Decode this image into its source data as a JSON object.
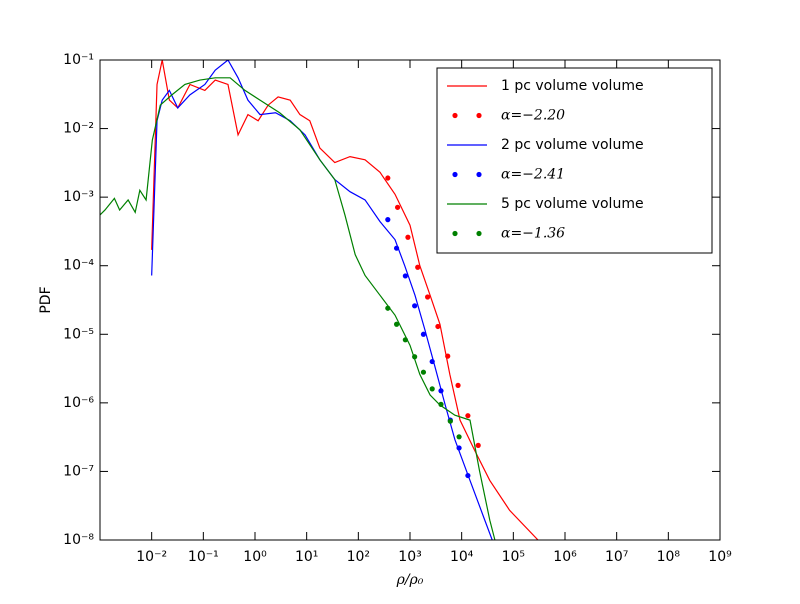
{
  "chart_data": {
    "type": "line",
    "x_label": "ρ/ρ₀",
    "y_label": "PDF",
    "x_scale": "log",
    "y_scale": "log",
    "xlim": [
      0.001,
      1000000000
    ],
    "ylim": [
      1e-08,
      0.1
    ],
    "xticks": [
      {
        "value": 0.01,
        "label": "10⁻²"
      },
      {
        "value": 0.1,
        "label": "10⁻¹"
      },
      {
        "value": 1,
        "label": "10⁰"
      },
      {
        "value": 10,
        "label": "10¹"
      },
      {
        "value": 100,
        "label": "10²"
      },
      {
        "value": 1000,
        "label": "10³"
      },
      {
        "value": 10000,
        "label": "10⁴"
      },
      {
        "value": 100000,
        "label": "10⁵"
      },
      {
        "value": 1000000,
        "label": "10⁶"
      },
      {
        "value": 10000000,
        "label": "10⁷"
      },
      {
        "value": 100000000,
        "label": "10⁸"
      },
      {
        "value": 1000000000,
        "label": "10⁹"
      }
    ],
    "yticks": [
      {
        "value": 1e-08,
        "label": "10⁻⁸"
      },
      {
        "value": 1e-07,
        "label": "10⁻⁷"
      },
      {
        "value": 1e-06,
        "label": "10⁻⁶"
      },
      {
        "value": 1e-05,
        "label": "10⁻⁵"
      },
      {
        "value": 0.0001,
        "label": "10⁻⁴"
      },
      {
        "value": 0.001,
        "label": "10⁻³"
      },
      {
        "value": 0.01,
        "label": "10⁻²"
      },
      {
        "value": 0.1,
        "label": "10⁻¹"
      }
    ],
    "legend": "upper right",
    "series": [
      {
        "name": "1 pc volume volume",
        "color": "#ff0000",
        "style": "line",
        "x": [
          0.01,
          0.0127,
          0.016,
          0.022,
          0.032,
          0.055,
          0.107,
          0.17,
          0.3,
          0.47,
          0.73,
          1.15,
          1.8,
          2.8,
          4.8,
          7.4,
          11.5,
          18,
          35,
          69,
          135,
          263,
          513,
          1000,
          1550,
          2450,
          3800,
          5900,
          9300,
          18000,
          35000,
          85000,
          300000
        ],
        "values": [
          0.00017,
          0.044,
          0.1,
          0.026,
          0.02,
          0.044,
          0.036,
          0.051,
          0.044,
          0.0081,
          0.016,
          0.013,
          0.022,
          0.029,
          0.026,
          0.016,
          0.013,
          0.0052,
          0.0032,
          0.0039,
          0.0035,
          0.0023,
          0.0011,
          0.00039,
          0.0001,
          3.7e-05,
          1.4e-05,
          2.6e-06,
          5.6e-07,
          2e-07,
          7.4e-08,
          2.7e-08,
          1e-08
        ]
      },
      {
        "name": "α=−2.20",
        "color": "#ff0000",
        "style": "dots",
        "x": [
          372,
          575,
          912,
          1410,
          2190,
          3470,
          5370,
          8510,
          13200,
          20900
        ],
        "values": [
          0.0019,
          0.00071,
          0.00026,
          9.5e-05,
          3.5e-05,
          1.3e-05,
          4.8e-06,
          1.8e-06,
          6.5e-07,
          2.4e-07
        ]
      },
      {
        "name": "2 pc volume volume",
        "color": "#0000ff",
        "style": "line",
        "x": [
          0.01,
          0.0127,
          0.016,
          0.022,
          0.032,
          0.055,
          0.107,
          0.17,
          0.3,
          0.47,
          0.73,
          1.25,
          2.5,
          4.8,
          9.3,
          18,
          35,
          69,
          135,
          263,
          513,
          790,
          1250,
          1950,
          3000,
          4800,
          7400,
          14500,
          28000,
          39000
        ],
        "values": [
          7.2e-05,
          0.013,
          0.026,
          0.036,
          0.02,
          0.031,
          0.044,
          0.071,
          0.1,
          0.055,
          0.026,
          0.016,
          0.017,
          0.013,
          0.0081,
          0.0035,
          0.0018,
          0.0012,
          0.00091,
          0.00044,
          0.00024,
          0.0001,
          3.7e-05,
          1.15e-05,
          3.5e-06,
          9.3e-07,
          2.9e-07,
          7.4e-08,
          1.95e-08,
          1e-08
        ]
      },
      {
        "name": "α=−2.41",
        "color": "#0000ff",
        "style": "dots",
        "x": [
          372,
          550,
          813,
          1230,
          1820,
          2690,
          3980,
          6030,
          8910,
          13200
        ],
        "values": [
          0.00047,
          0.00018,
          7.1e-05,
          2.6e-05,
          1e-05,
          4e-06,
          1.5e-06,
          5.6e-07,
          2.2e-07,
          8.7e-08
        ]
      },
      {
        "name": "5 pc volume volume",
        "color": "#008000",
        "style": "line",
        "x": [
          0.001,
          0.00125,
          0.0019,
          0.0024,
          0.0035,
          0.0048,
          0.0059,
          0.0078,
          0.0103,
          0.0147,
          0.0246,
          0.044,
          0.086,
          0.17,
          0.33,
          0.64,
          1.25,
          3,
          7.4,
          18,
          35,
          55,
          87,
          135,
          263,
          513,
          1000,
          1550,
          2450,
          3800,
          7400,
          14500,
          22000,
          35000,
          44000
        ],
        "values": [
          0.00055,
          0.00065,
          0.00096,
          0.00065,
          0.00091,
          0.0006,
          0.00126,
          0.00091,
          0.0068,
          0.022,
          0.031,
          0.044,
          0.051,
          0.055,
          0.055,
          0.036,
          0.026,
          0.017,
          0.0096,
          0.0035,
          0.0018,
          0.00055,
          0.000145,
          7.2e-05,
          3.7e-05,
          1.9e-05,
          6.9e-06,
          2.6e-06,
          1.3e-06,
          9.3e-07,
          6.6e-07,
          5.6e-07,
          1.05e-07,
          1.95e-08,
          1e-08
        ]
      },
      {
        "name": "α=−1.36",
        "color": "#008000",
        "style": "dots",
        "x": [
          372,
          550,
          813,
          1230,
          1820,
          2690,
          3980,
          6030,
          8910
        ],
        "values": [
          2.4e-05,
          1.4e-05,
          8.3e-06,
          4.7e-06,
          2.8e-06,
          1.6e-06,
          9.5e-07,
          5.4e-07,
          3.2e-07
        ]
      }
    ]
  }
}
